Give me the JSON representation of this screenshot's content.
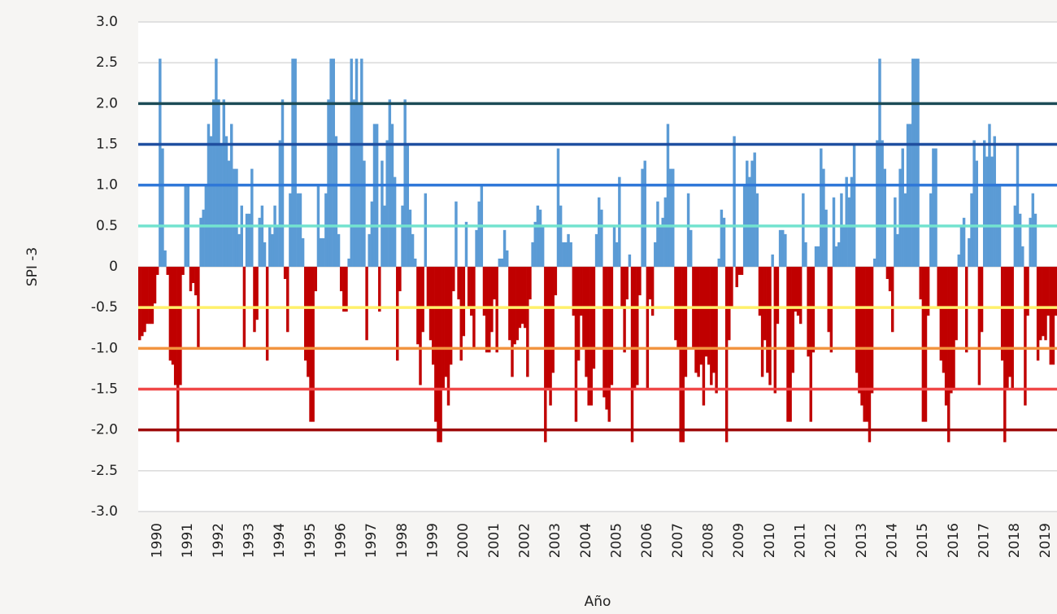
{
  "chart_data": {
    "type": "bar",
    "y_label": "SPI -3",
    "x_label": "Año",
    "categories": [
      null,
      null,
      null,
      null,
      null,
      null,
      null,
      "1990",
      null,
      null,
      null,
      null,
      null,
      null,
      null,
      null,
      null,
      null,
      null,
      "1991",
      null,
      null,
      null,
      null,
      null,
      null,
      null,
      null,
      null,
      null,
      null,
      "1992",
      null,
      null,
      null,
      null,
      null,
      null,
      null,
      null,
      null,
      null,
      null,
      "1993",
      null,
      null,
      null,
      null,
      null,
      null,
      null,
      null,
      null,
      null,
      null,
      "1994",
      null,
      null,
      null,
      null,
      null,
      null,
      null,
      null,
      null,
      null,
      null,
      "1995",
      null,
      null,
      null,
      null,
      null,
      null,
      null,
      null,
      null,
      null,
      null,
      "1996",
      null,
      null,
      null,
      null,
      null,
      null,
      null,
      null,
      null,
      null,
      null,
      "1997",
      null,
      null,
      null,
      null,
      null,
      null,
      null,
      null,
      null,
      null,
      null,
      "1998",
      null,
      null,
      null,
      null,
      null,
      null,
      null,
      null,
      null,
      null,
      null,
      "1999",
      null,
      null,
      null,
      null,
      null,
      null,
      null,
      null,
      null,
      null,
      null,
      "2000",
      null,
      null,
      null,
      null,
      null,
      null,
      null,
      null,
      null,
      null,
      null,
      "2001",
      null,
      null,
      null,
      null,
      null,
      null,
      null,
      null,
      null,
      null,
      null,
      "2002",
      null,
      null,
      null,
      null,
      null,
      null,
      null,
      null,
      null,
      null,
      null,
      "2003",
      null,
      null,
      null,
      null,
      null,
      null,
      null,
      null,
      null,
      null,
      null,
      "2004",
      null,
      null,
      null,
      null,
      null,
      null,
      null,
      null,
      null,
      null,
      null,
      "2005",
      null,
      null,
      null,
      null,
      null,
      null,
      null,
      null,
      null,
      null,
      null,
      "2006",
      null,
      null,
      null,
      null,
      null,
      null,
      null,
      null,
      null,
      null,
      null,
      "2007",
      null,
      null,
      null,
      null,
      null,
      null,
      null,
      null,
      null,
      null,
      null,
      "2008",
      null,
      null,
      null,
      null,
      null,
      null,
      null,
      null,
      null,
      null,
      null,
      "2009",
      null,
      null,
      null,
      null,
      null,
      null,
      null,
      null,
      null,
      null,
      null,
      "2010",
      null,
      null,
      null,
      null,
      null,
      null,
      null,
      null,
      null,
      null,
      null,
      "2011",
      null,
      null,
      null,
      null,
      null,
      null,
      null,
      null,
      null,
      null,
      null,
      "2012",
      null,
      null,
      null,
      null,
      null,
      null,
      null,
      null,
      null,
      null,
      null,
      "2013",
      null,
      null,
      null,
      null,
      null,
      null,
      null,
      null,
      null,
      null,
      null,
      "2014",
      null,
      null,
      null,
      null,
      null,
      null,
      null,
      null,
      null,
      null,
      null,
      "2015",
      null,
      null,
      null,
      null,
      null,
      null,
      null,
      null,
      null,
      null,
      null,
      "2016",
      null,
      null,
      null,
      null,
      null,
      null,
      null,
      null,
      null,
      null,
      null,
      "2017",
      null,
      null,
      null,
      null,
      null,
      null,
      null,
      null,
      null,
      null,
      null,
      "2018",
      null,
      null,
      null,
      null,
      null,
      null,
      null,
      null,
      null,
      null,
      null,
      "2019",
      null,
      null,
      null,
      null
    ],
    "values": [
      -0.9,
      -0.85,
      -0.8,
      -0.7,
      -0.7,
      -0.7,
      -0.45,
      -0.1,
      2.55,
      1.45,
      0.2,
      -0.1,
      -1.15,
      -1.2,
      -1.45,
      -2.15,
      -1.45,
      -0.1,
      1.0,
      1.0,
      -0.3,
      -0.2,
      -0.35,
      -1.0,
      0.6,
      0.7,
      1.0,
      1.75,
      1.6,
      2.05,
      2.55,
      2.05,
      1.5,
      2.05,
      1.6,
      1.3,
      1.75,
      1.2,
      1.2,
      0.4,
      0.75,
      -1.0,
      0.65,
      0.65,
      1.2,
      -0.8,
      -0.65,
      0.6,
      0.75,
      0.3,
      -1.15,
      0.5,
      0.4,
      0.75,
      0.5,
      1.55,
      2.05,
      -0.15,
      -0.8,
      0.9,
      2.55,
      2.55,
      0.9,
      0.9,
      0.35,
      -1.15,
      -1.35,
      -1.9,
      -1.9,
      -0.3,
      1.0,
      0.35,
      0.35,
      0.9,
      2.05,
      2.55,
      2.55,
      1.6,
      0.4,
      -0.3,
      -0.55,
      -0.55,
      0.1,
      2.55,
      2.05,
      2.55,
      2.0,
      2.55,
      1.3,
      -0.9,
      0.4,
      0.8,
      1.75,
      1.75,
      -0.55,
      1.3,
      0.75,
      1.55,
      2.05,
      1.75,
      1.1,
      -1.15,
      -0.3,
      0.75,
      2.05,
      1.5,
      0.7,
      0.4,
      0.1,
      -0.95,
      -1.45,
      -0.8,
      0.9,
      -0.5,
      -0.9,
      -1.2,
      -1.9,
      -2.15,
      -2.15,
      -1.5,
      -1.35,
      -1.7,
      -1.2,
      -0.3,
      0.8,
      -0.4,
      -1.15,
      -0.85,
      0.55,
      -0.5,
      -0.6,
      -1.0,
      0.45,
      0.8,
      1.0,
      -0.6,
      -1.05,
      -1.05,
      -0.8,
      -0.4,
      -1.05,
      0.1,
      0.1,
      0.45,
      0.2,
      -0.9,
      -1.35,
      -0.95,
      -0.9,
      -0.75,
      -0.7,
      -0.75,
      -1.35,
      -0.4,
      0.3,
      0.55,
      0.75,
      0.7,
      0.5,
      -2.15,
      -1.5,
      -1.7,
      -1.3,
      -0.35,
      1.45,
      0.75,
      0.3,
      0.3,
      0.4,
      0.3,
      -0.6,
      -1.9,
      -1.15,
      -0.6,
      -1.0,
      -1.35,
      -1.7,
      -1.7,
      -1.25,
      0.4,
      0.85,
      0.7,
      -1.6,
      -1.75,
      -1.9,
      -1.45,
      0.5,
      0.3,
      1.1,
      -0.5,
      -1.05,
      -0.4,
      0.15,
      -2.15,
      -1.5,
      -1.45,
      -0.35,
      1.2,
      1.3,
      -1.5,
      -0.4,
      -0.6,
      0.3,
      0.8,
      0.5,
      0.6,
      0.85,
      1.75,
      1.2,
      1.2,
      -0.9,
      -1.0,
      -2.15,
      -2.15,
      -1.35,
      0.9,
      0.45,
      -1.0,
      -1.3,
      -1.35,
      -1.2,
      -1.7,
      -1.1,
      -1.2,
      -1.45,
      -1.3,
      -1.55,
      0.1,
      0.7,
      0.6,
      -2.15,
      -0.9,
      -0.5,
      1.6,
      -0.25,
      -0.1,
      -0.1,
      1.0,
      1.3,
      1.1,
      1.3,
      1.4,
      0.9,
      -0.6,
      -1.35,
      -0.9,
      -1.3,
      -1.45,
      0.15,
      -1.55,
      -0.7,
      0.45,
      0.45,
      0.4,
      -1.9,
      -1.9,
      -1.3,
      -0.55,
      -0.6,
      -0.7,
      0.9,
      0.3,
      -1.1,
      -1.9,
      -1.05,
      0.25,
      0.25,
      1.45,
      1.2,
      0.7,
      -0.8,
      -1.05,
      0.85,
      0.25,
      0.3,
      0.9,
      0.5,
      1.1,
      0.85,
      1.1,
      1.5,
      -1.3,
      -1.55,
      -1.7,
      -1.9,
      -1.9,
      -2.15,
      -1.55,
      0.1,
      1.55,
      2.55,
      1.55,
      1.2,
      -0.15,
      -0.3,
      -0.8,
      0.85,
      0.4,
      1.2,
      1.45,
      0.9,
      1.75,
      1.75,
      2.55,
      2.55,
      2.55,
      -0.4,
      -1.9,
      -1.9,
      -0.6,
      0.9,
      1.45,
      1.45,
      -0.5,
      -1.15,
      -1.3,
      -1.7,
      -2.15,
      -1.55,
      -1.5,
      -0.9,
      0.15,
      0.5,
      0.6,
      -1.05,
      0.35,
      0.9,
      1.55,
      1.3,
      -1.45,
      -0.8,
      1.55,
      1.35,
      1.75,
      1.35,
      1.6,
      1.0,
      1.0,
      -1.15,
      -2.15,
      -1.5,
      -1.35,
      -1.5,
      0.75,
      1.5,
      0.65,
      0.25,
      -1.7,
      -0.6,
      0.6,
      0.9,
      0.65,
      -1.15,
      -0.9,
      -0.85,
      -0.9,
      -0.6,
      -1.2,
      -1.2,
      -0.6
    ],
    "positive_color": "#5b9bd5",
    "negative_color": "#c00000",
    "ylim": [
      -3,
      3
    ],
    "yticks": [
      {
        "value": -3,
        "label": "-3.0"
      },
      -2.5,
      {
        "value": -2,
        "label": "-2.0"
      },
      -1.5,
      {
        "value": -1,
        "label": "-1.0"
      },
      -0.5,
      0,
      0.5,
      {
        "value": 1,
        "label": "1.0"
      },
      1.5,
      {
        "value": 2,
        "label": "2.0"
      },
      2.5,
      {
        "value": 3,
        "label": "3.0"
      }
    ],
    "grid": true,
    "reference_lines": [
      {
        "value": 2,
        "color": "#1c4b57"
      },
      {
        "value": 1.5,
        "color": "#1f4fa0"
      },
      {
        "value": 1,
        "color": "#2f78d8"
      },
      {
        "value": 0.5,
        "color": "#73e3cf"
      },
      {
        "value": -0.5,
        "color": "#fff06a"
      },
      {
        "value": -1,
        "color": "#f29440"
      },
      {
        "value": -1.5,
        "color": "#f04848"
      },
      {
        "value": -2,
        "color": "#9e0a0a"
      }
    ]
  }
}
